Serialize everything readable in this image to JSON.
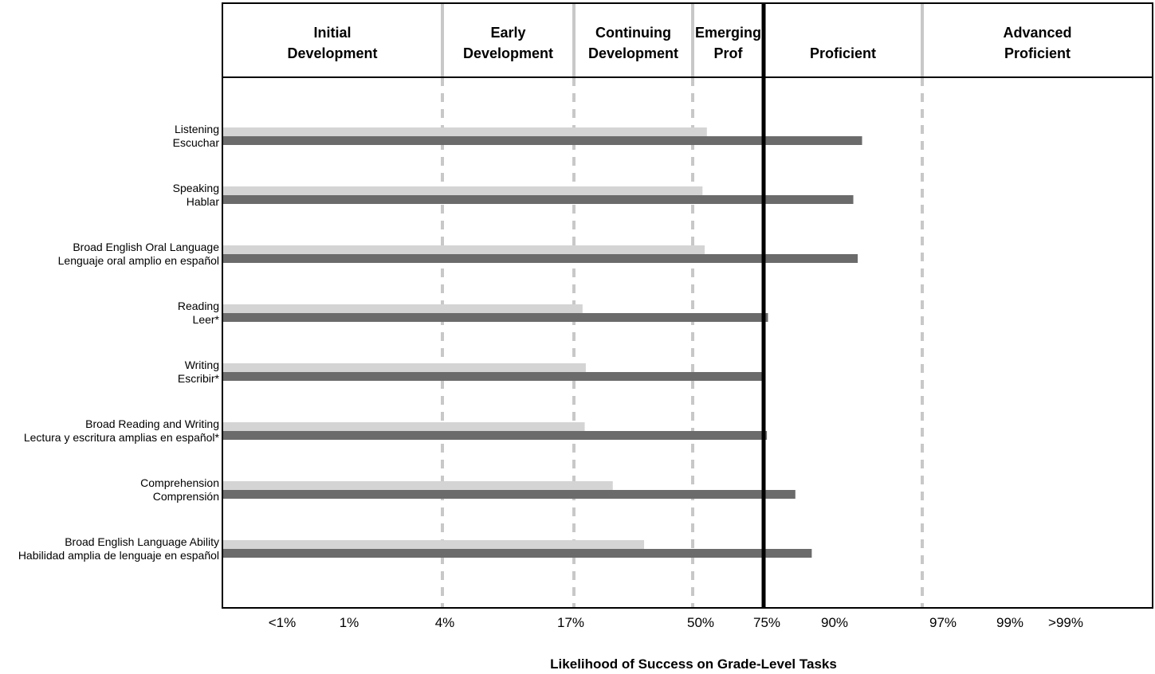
{
  "chart_data": {
    "type": "bar",
    "orientation": "horizontal",
    "xlabel": "Likelihood of Success on Grade-Level Tasks",
    "x_ticks": [
      "<1%",
      "1%",
      "4%",
      "17%",
      "50%",
      "75%",
      "90%",
      "97%",
      "99%",
      ">99%"
    ],
    "bands": [
      {
        "label": [
          "Initial",
          "Development"
        ],
        "from": 0,
        "to": 2
      },
      {
        "label": [
          "Early",
          "Development"
        ],
        "from": 2,
        "to": 3.2
      },
      {
        "label": [
          "Continuing",
          "Development"
        ],
        "from": 3.2,
        "to": 4.3
      },
      {
        "label": [
          "Emerging",
          "Prof"
        ],
        "from": 4.3,
        "to": 4.95
      },
      {
        "label": [
          "Proficient"
        ],
        "from": 4.95,
        "to": 6.4
      },
      {
        "label": [
          "Advanced",
          "Proficient"
        ],
        "from": 6.4,
        "to": 8.5
      }
    ],
    "proficient_line": 4.95,
    "xlim": [
      0,
      8.5
    ],
    "categories": [
      [
        "Listening",
        "Escuchar"
      ],
      [
        "Speaking",
        "Hablar"
      ],
      [
        "Broad English Oral Language",
        "Lenguaje oral amplio en español"
      ],
      [
        "Reading",
        "Leer*"
      ],
      [
        "Writing",
        "Escribir*"
      ],
      [
        "Broad Reading and Writing",
        "Lectura y escritura amplias en español*"
      ],
      [
        "Comprehension",
        "Comprensión"
      ],
      [
        "Broad English Language Ability",
        "Habilidad amplia de lenguaje en español"
      ]
    ],
    "series": [
      {
        "color": "#d4d4d4",
        "values": [
          4.43,
          4.39,
          4.41,
          3.28,
          3.31,
          3.3,
          3.56,
          3.85
        ]
      },
      {
        "color": "#6b6b6b",
        "values": [
          5.85,
          5.77,
          5.81,
          4.99,
          4.96,
          4.98,
          5.24,
          5.39
        ]
      }
    ],
    "colors": {
      "grid": "#c8c8c8",
      "frame": "#000000"
    }
  }
}
